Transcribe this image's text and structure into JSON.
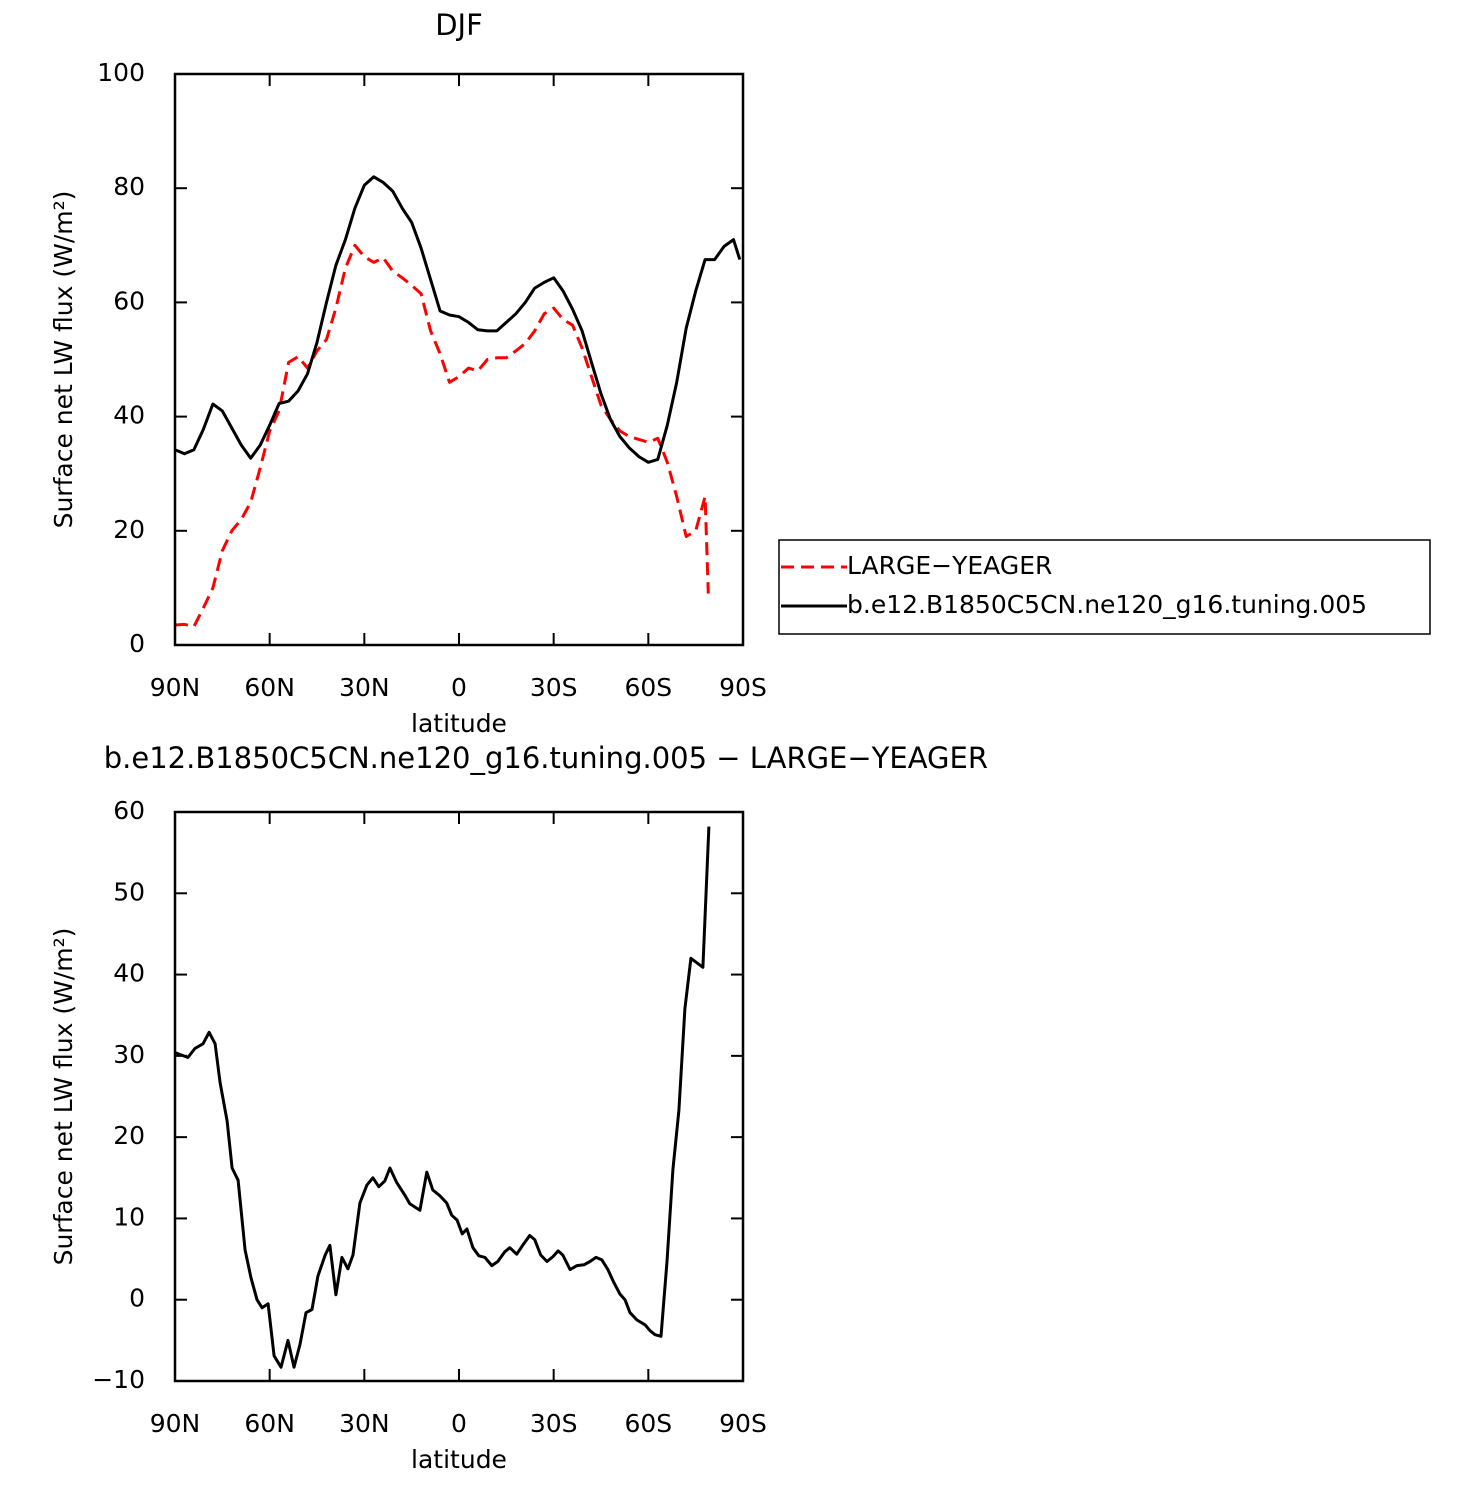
{
  "chart_data": [
    {
      "type": "line",
      "title": "DJF",
      "xlabel": "latitude",
      "ylabel": "Surface net LW flux (W/m²)",
      "xlim": [
        90,
        -90
      ],
      "xticks": [
        {
          "value": 90,
          "label": "90N"
        },
        {
          "value": 60,
          "label": "60N"
        },
        {
          "value": 30,
          "label": "30N"
        },
        0,
        {
          "value": -30,
          "label": "30S"
        },
        {
          "value": -60,
          "label": "60S"
        },
        {
          "value": -90,
          "label": "90S"
        }
      ],
      "ylim": [
        0,
        100
      ],
      "yticks": [
        0,
        20,
        40,
        60,
        80,
        100
      ],
      "series": [
        {
          "name": "LARGE−YEAGER",
          "color": "#ff0000",
          "dashed": true,
          "x": [
            90,
            87,
            84,
            81,
            78,
            75,
            72,
            69,
            66,
            63,
            60,
            57,
            54,
            51,
            48,
            45,
            42,
            39,
            36,
            33,
            30,
            27,
            24,
            21,
            18,
            15,
            12,
            9,
            6,
            3,
            0,
            -3,
            -6,
            -9,
            -12,
            -15,
            -18,
            -21,
            -24,
            -27,
            -30,
            -33,
            -36,
            -39,
            -42,
            -45,
            -48,
            -51,
            -54,
            -57,
            -60,
            -63,
            -66,
            -69,
            -72,
            -75,
            -78,
            -79
          ],
          "values": [
            3.5,
            3.6,
            3.2,
            6.5,
            10,
            16.5,
            20,
            22,
            25,
            31,
            37.5,
            41,
            49.5,
            50.5,
            48.5,
            51.5,
            53.5,
            59,
            66,
            70,
            68,
            67,
            67.8,
            65.5,
            64.3,
            63,
            61.5,
            55,
            51,
            46,
            47,
            48.5,
            48,
            50,
            50.3,
            50.3,
            51.5,
            52.8,
            55,
            58,
            59,
            57,
            56,
            52,
            47,
            42,
            39.5,
            37.5,
            36.5,
            36,
            35.5,
            36.2,
            32,
            26,
            19,
            20,
            26,
            9
          ]
        },
        {
          "name": "b.e12.B1850C5CN.ne120_g16.tuning.005",
          "color": "#000000",
          "dashed": false,
          "x": [
            90,
            87,
            84,
            81,
            78,
            75,
            72,
            69,
            66,
            63,
            60,
            57,
            54,
            51,
            48,
            45,
            42,
            39,
            36,
            33,
            30,
            27,
            24,
            21,
            18,
            15,
            12,
            9,
            6,
            3,
            0,
            -3,
            -6,
            -9,
            -12,
            -15,
            -18,
            -21,
            -24,
            -27,
            -30,
            -33,
            -36,
            -39,
            -42,
            -45,
            -48,
            -51,
            -54,
            -57,
            -60,
            -63,
            -66,
            -69,
            -72,
            -75,
            -78,
            -81,
            -84,
            -87,
            -89
          ],
          "values": [
            34.2,
            33.5,
            34.2,
            37.8,
            42.2,
            41,
            38,
            35,
            32.7,
            35,
            38.5,
            42.3,
            42.7,
            44.5,
            47.5,
            53,
            60,
            66.5,
            71,
            76.5,
            80.5,
            82,
            81,
            79.5,
            76.5,
            74,
            69.5,
            64,
            58.5,
            57.8,
            57.5,
            56.5,
            55.2,
            55,
            55,
            56.5,
            58,
            60,
            62.5,
            63.5,
            64.3,
            62,
            58.8,
            55,
            49.5,
            44,
            39.5,
            36.5,
            34.5,
            33,
            32,
            32.5,
            38.5,
            46,
            55.5,
            62,
            67.5,
            67.5,
            69.8,
            71,
            67.5
          ]
        }
      ],
      "legend": "right"
    },
    {
      "type": "line",
      "title": "b.e12.B1850C5CN.ne120_g16.tuning.005 − LARGE−YEAGER",
      "xlabel": "latitude",
      "ylabel": "Surface net LW flux (W/m²)",
      "xlim": [
        90,
        -90
      ],
      "xticks": [
        {
          "value": 90,
          "label": "90N"
        },
        {
          "value": 60,
          "label": "60N"
        },
        {
          "value": 30,
          "label": "30N"
        },
        0,
        {
          "value": -30,
          "label": "30S"
        },
        {
          "value": -60,
          "label": "60S"
        },
        {
          "value": -90,
          "label": "90S"
        }
      ],
      "ylim": [
        -10,
        60
      ],
      "yticks": [
        {
          "value": -10,
          "label": "−10"
        },
        0,
        10,
        20,
        30,
        40,
        50,
        60
      ],
      "series": [
        {
          "color": "#000000",
          "dashed": false,
          "x": [
            90,
            85.9,
            83.7,
            81.1,
            79.2,
            77.3,
            75.7,
            73.5,
            71.9,
            70,
            67.8,
            65.9,
            64,
            62.4,
            60.5,
            58.6,
            56.4,
            54.2,
            52.3,
            50.4,
            48.5,
            46.6,
            44.7,
            42.4,
            40.9,
            39,
            37.1,
            35.2,
            33.6,
            31.4,
            29.2,
            27.3,
            25.4,
            23.5,
            21.9,
            19.7,
            17.2,
            15.6,
            12.4,
            10.2,
            8.3,
            6.1,
            3.9,
            2.3,
            0.6,
            -1,
            -2.5,
            -4.4,
            -6.3,
            -8.2,
            -10.4,
            -12.3,
            -14.5,
            -16.1,
            -18.3,
            -20.2,
            -22.4,
            -24,
            -25.9,
            -27.9,
            -29.8,
            -31.4,
            -32.9,
            -35.2,
            -37.4,
            -39.6,
            -41.5,
            -43.4,
            -45.3,
            -47.2,
            -49.1,
            -51,
            -52.6,
            -54.2,
            -56.4,
            -59,
            -60.5,
            -62.1,
            -64,
            -65.9,
            -67.8,
            -69.7,
            -71.6,
            -73.5,
            -77.3,
            -79.2
          ],
          "values": [
            30.4,
            29.8,
            30.9,
            31.5,
            32.9,
            31.5,
            26.7,
            22,
            16.2,
            14.7,
            6.1,
            2.7,
            0,
            -1,
            -0.5,
            -6.9,
            -8.3,
            -5,
            -8.3,
            -5.5,
            -1.6,
            -1.2,
            2.9,
            5.5,
            6.7,
            0.6,
            5.2,
            3.8,
            5.5,
            11.9,
            14.1,
            15,
            13.9,
            14.6,
            16.2,
            14.4,
            12.9,
            11.8,
            11,
            15.7,
            13.5,
            12.8,
            11.9,
            10.4,
            9.8,
            8.1,
            8.7,
            6.4,
            5.4,
            5.2,
            4.2,
            4.7,
            5.9,
            6.4,
            5.6,
            6.7,
            7.9,
            7.4,
            5.5,
            4.7,
            5.3,
            6,
            5.5,
            3.7,
            4.2,
            4.3,
            4.7,
            5.2,
            4.9,
            3.7,
            2.1,
            0.7,
            0,
            -1.6,
            -2.5,
            -3.1,
            -3.8,
            -4.3,
            -4.5,
            4.7,
            16,
            23.3,
            35.8,
            42,
            40.9,
            58.2
          ]
        }
      ]
    }
  ]
}
